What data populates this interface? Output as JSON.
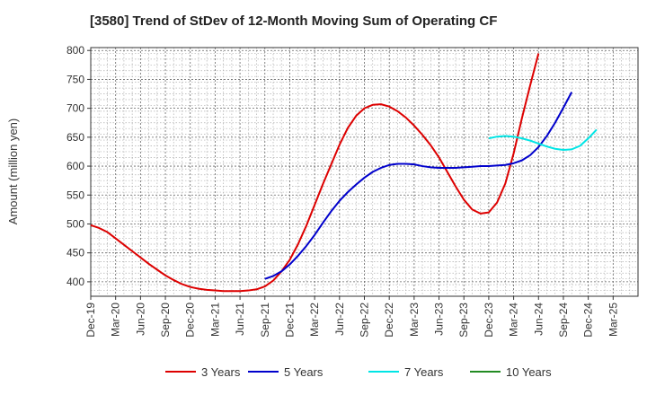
{
  "chart_data": {
    "type": "line",
    "title": "[3580]  Trend of StDev of 12-Month Moving Sum of Operating CF",
    "xlabel": "",
    "ylabel": "Amount (million yen)",
    "ylim": [
      375,
      805
    ],
    "yticks": [
      400,
      450,
      500,
      550,
      600,
      650,
      700,
      750,
      800
    ],
    "xtick_labels": [
      "Dec-19",
      "Mar-20",
      "Jun-20",
      "Sep-20",
      "Dec-20",
      "Mar-21",
      "Jun-21",
      "Sep-21",
      "Dec-21",
      "Mar-22",
      "Jun-22",
      "Sep-22",
      "Dec-22",
      "Mar-23",
      "Jun-23",
      "Sep-23",
      "Dec-23",
      "Mar-24",
      "Jun-24",
      "Sep-24",
      "Dec-24",
      "Mar-25"
    ],
    "grid": true,
    "legend_position": "bottom",
    "series": [
      {
        "name": "3 Years",
        "color": "#dd0000",
        "start_index": 0,
        "values": [
          498,
          493,
          486,
          475,
          464,
          453,
          442,
          431,
          421,
          411,
          403,
          396,
          391,
          388,
          386,
          385,
          384,
          384,
          384,
          385,
          387,
          392,
          402,
          418,
          438,
          465,
          497,
          533,
          569,
          603,
          637,
          666,
          687,
          700,
          706,
          707,
          703,
          695,
          684,
          670,
          654,
          636,
          615,
          590,
          565,
          542,
          525,
          518,
          520,
          537,
          570,
          622,
          683,
          740,
          795
        ]
      },
      {
        "name": "5 Years",
        "color": "#0000cc",
        "start_index": 21,
        "values": [
          405,
          410,
          418,
          430,
          445,
          462,
          481,
          502,
          522,
          540,
          555,
          568,
          580,
          590,
          597,
          602,
          604,
          604,
          603,
          600,
          598,
          597,
          597,
          597,
          598,
          599,
          600,
          600,
          601,
          602,
          605,
          610,
          619,
          633,
          652,
          675,
          701,
          728
        ]
      },
      {
        "name": "7 Years",
        "color": "#00e5e5",
        "start_index": 48,
        "values": [
          648,
          651,
          652,
          651,
          648,
          644,
          639,
          634,
          630,
          628,
          629,
          635,
          648,
          663
        ]
      },
      {
        "name": "10 Years",
        "color": "#228b22",
        "start_index": 0,
        "values": []
      }
    ]
  }
}
